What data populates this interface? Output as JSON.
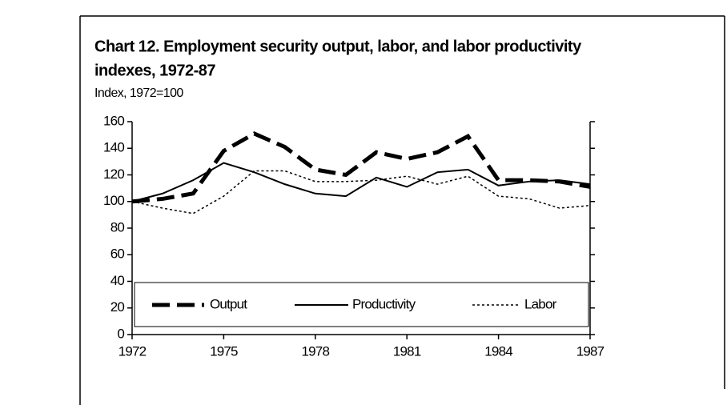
{
  "chart_data": {
    "type": "line",
    "title": [
      "Chart 12.  Employment security output, labor, and labor productivity",
      "indexes, 1972-87"
    ],
    "ylabel": "Index, 1972=100",
    "x": [
      1972,
      1973,
      1974,
      1975,
      1976,
      1977,
      1978,
      1979,
      1980,
      1981,
      1982,
      1983,
      1984,
      1985,
      1986,
      1987
    ],
    "xlim": [
      1972,
      1987
    ],
    "xticks": [
      1972,
      1975,
      1978,
      1981,
      1984,
      1987
    ],
    "ylim": [
      0,
      160
    ],
    "yticks": [
      0,
      20,
      40,
      60,
      80,
      100,
      120,
      140,
      160
    ],
    "grid": false,
    "legend": "bottom",
    "series": [
      {
        "name": "Output",
        "color": "#000000",
        "line_style": "dashed",
        "values": [
          100,
          102,
          106,
          138,
          151,
          141,
          124,
          120,
          137,
          132,
          137,
          149,
          116,
          116,
          115,
          111
        ]
      },
      {
        "name": "Productivity",
        "color": "#000000",
        "line_style": "solid",
        "values": [
          100,
          106,
          116,
          129,
          122,
          113,
          106,
          104,
          118,
          111,
          122,
          124,
          112,
          115,
          116,
          113
        ]
      },
      {
        "name": "Labor",
        "color": "#000000",
        "line_style": "dotted",
        "values": [
          100,
          95,
          91,
          104,
          123,
          123,
          115,
          115,
          116,
          119,
          113,
          119,
          104,
          102,
          95,
          97
        ]
      }
    ]
  }
}
